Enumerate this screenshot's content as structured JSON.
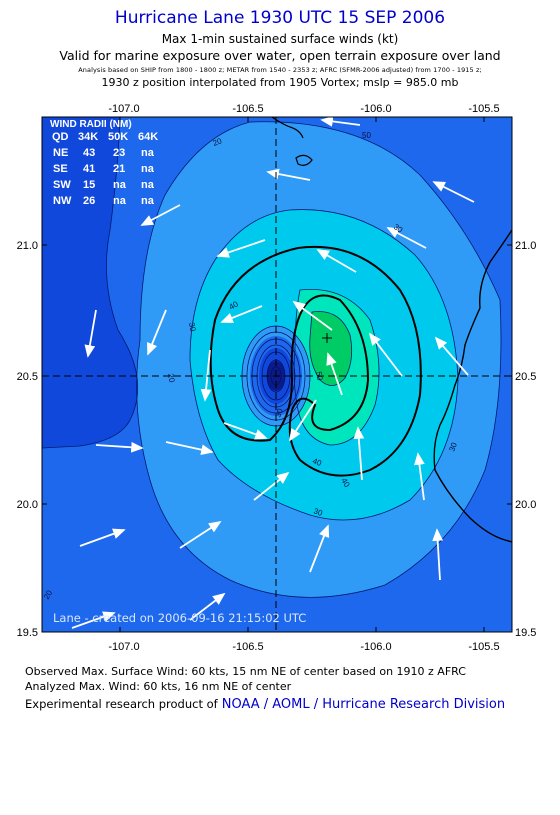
{
  "header": {
    "title": "Hurricane Lane 1930 UTC 15 SEP 2006",
    "line1": "Max 1-min sustained surface winds (kt)",
    "line2": "Valid for marine exposure over water, open terrain exposure over land",
    "line3": "Analysis based on  SHIP from 1800 - 1800 z;  METAR from 1540 - 2353 z;  AFRC  (SFMR-2006 adjusted) from 1700 - 1915 z;",
    "line4": "1930 z position interpolated from 1905 Vortex; mslp = 985.0 mb"
  },
  "axes": {
    "lon_ticks": [
      "-107.0",
      "-106.5",
      "-106.0",
      "-105.5"
    ],
    "lat_ticks": [
      "21.0",
      "20.5",
      "20.0",
      "19.5"
    ]
  },
  "wind_radii": {
    "title": "WIND RADII (NM)",
    "header": [
      "QD",
      "34K",
      "50K",
      "64K"
    ],
    "rows": [
      [
        "NE",
        "43",
        "23",
        "na"
      ],
      [
        "SE",
        "41",
        "21",
        "na"
      ],
      [
        "SW",
        "15",
        "na",
        "na"
      ],
      [
        "NW",
        "26",
        "na",
        "na"
      ]
    ]
  },
  "contour_labels": [
    "20",
    "30",
    "40",
    "50",
    "30",
    "40",
    "30",
    "20",
    "30",
    "40",
    "50",
    "30",
    "20"
  ],
  "credit": "Lane - created on 2006-09-16 21:15:02 UTC",
  "footer": {
    "line1": "Observed Max. Surface Wind: 60 kts, 15 nm NE of center based on 1910 z AFRC",
    "line2": "Analyzed Max. Wind: 60 kts, 16 nm NE of center",
    "line3_prefix": "Experimental research product of",
    "line3_org": "NOAA / AOML / Hurricane Research Division"
  },
  "colors": {
    "c10": "#1148dc",
    "c20": "#1e68ee",
    "c30": "#2f9bf7",
    "c40": "#00c9ee",
    "c50": "#00e6bc",
    "c60": "#00cc66",
    "eye": "#0a1a88",
    "title": "#0000cc"
  }
}
